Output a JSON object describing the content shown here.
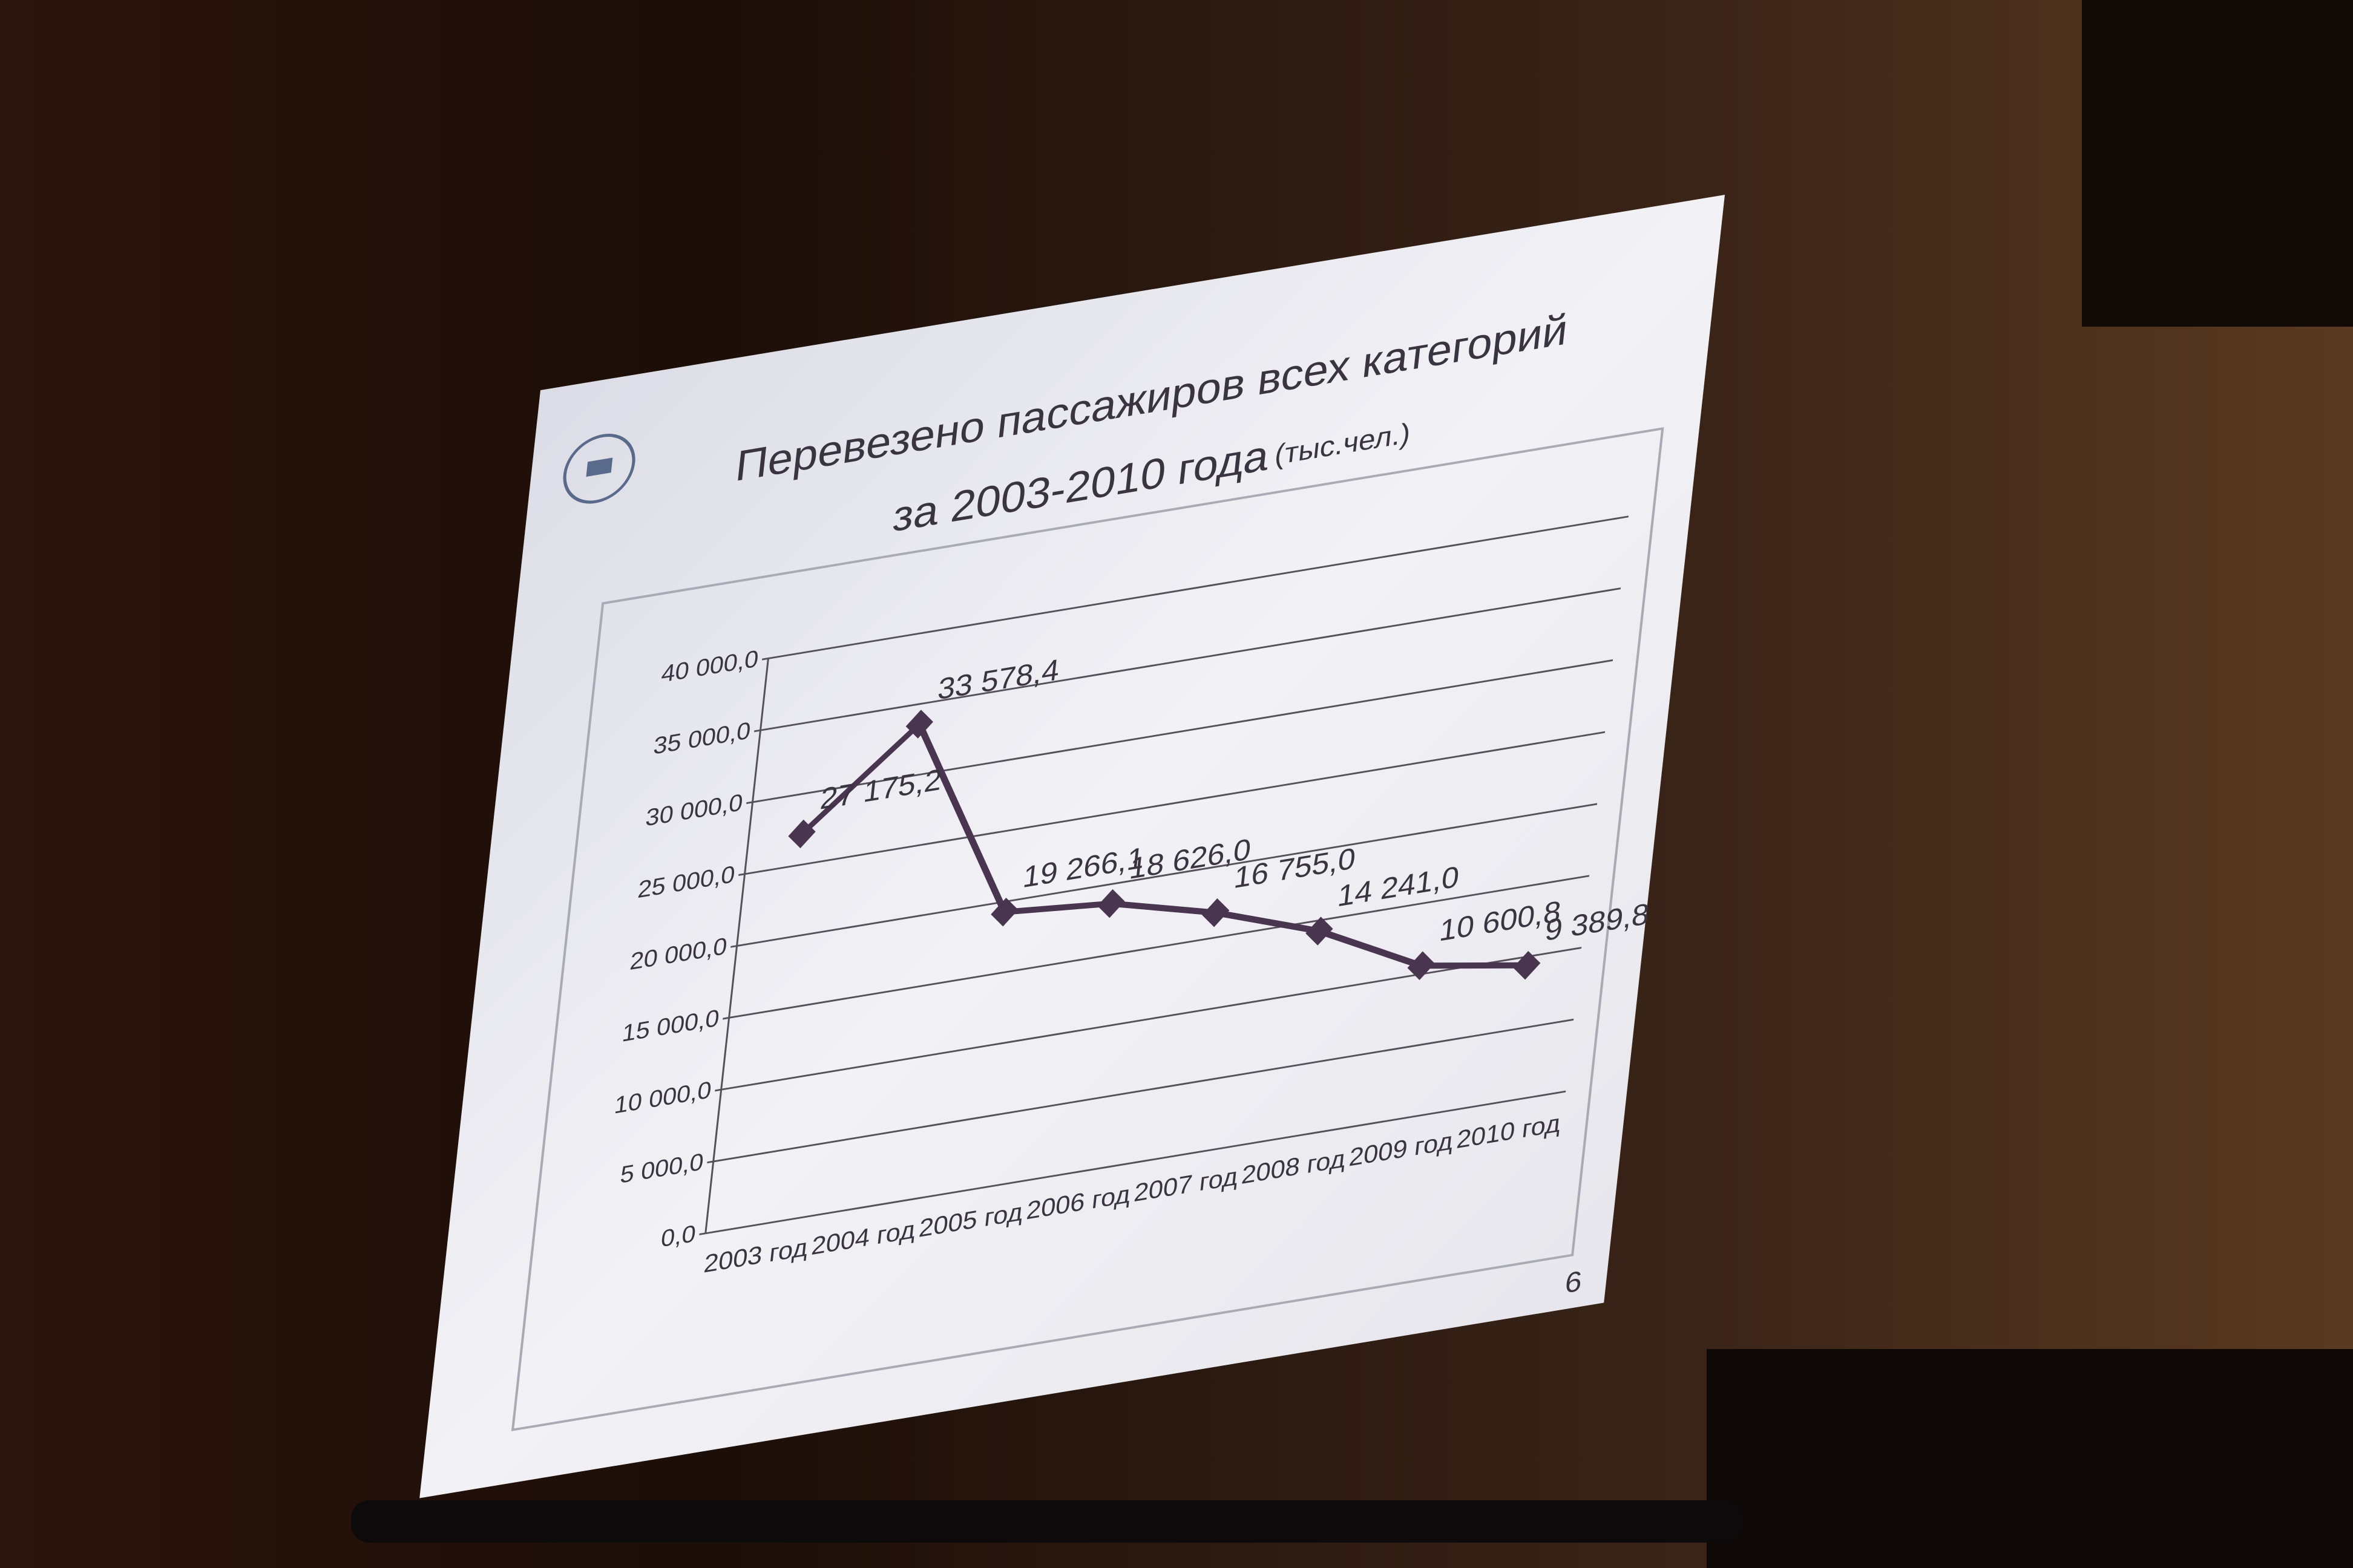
{
  "chart_data": {
    "type": "line",
    "title": "Перевезено пассажиров всех категорий",
    "subtitle": "за 2003-2010 года",
    "units": "(тыс.чел.)",
    "categories": [
      "2003 год",
      "2004 год",
      "2005 год",
      "2006 год",
      "2007 год",
      "2008 год",
      "2009 год",
      "2010 год"
    ],
    "values": [
      27175.2,
      33578.4,
      19266.1,
      18626.0,
      16755.0,
      14241.0,
      10600.8,
      9389.8
    ],
    "value_labels": [
      "27 175,2",
      "33 578,4",
      "19 266,1",
      "18 626,0",
      "16 755,0",
      "14 241,0",
      "10 600,8",
      "9 389,8"
    ],
    "color": "#4a3550",
    "ylim": [
      0,
      40000
    ],
    "yticks": [
      {
        "value": 0,
        "label": "0,0"
      },
      {
        "value": 5000,
        "label": "5 000,0"
      },
      {
        "value": 10000,
        "label": "10 000,0"
      },
      {
        "value": 15000,
        "label": "15 000,0"
      },
      {
        "value": 20000,
        "label": "20 000,0"
      },
      {
        "value": 25000,
        "label": "25 000,0"
      },
      {
        "value": 30000,
        "label": "30 000,0"
      },
      {
        "value": 35000,
        "label": "35 000,0"
      },
      {
        "value": 40000,
        "label": "40 000,0"
      }
    ],
    "grid": true
  },
  "slide": {
    "page_number": "6"
  }
}
